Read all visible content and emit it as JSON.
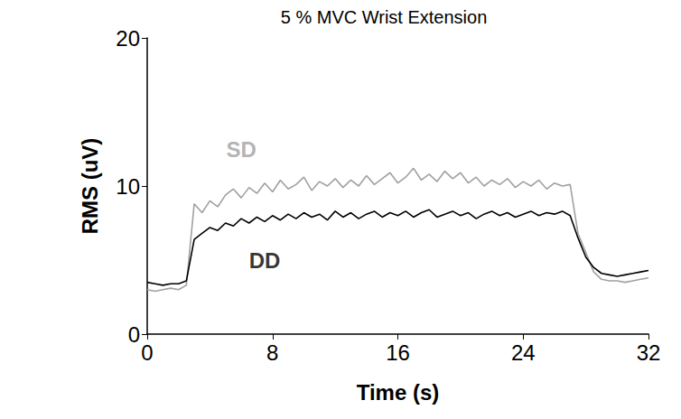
{
  "chart_data": {
    "type": "line",
    "title": "5 % MVC Wrist Extension",
    "x_label": "Time (s)",
    "y_label": "RMS (uV)",
    "xlim": [
      0,
      32
    ],
    "xticks": [
      0,
      8,
      16,
      24,
      32
    ],
    "ylim": [
      0,
      20
    ],
    "yticks": [
      0,
      10,
      20
    ],
    "grid": false,
    "x": [
      0,
      0.5,
      1,
      1.5,
      2,
      2.5,
      3,
      3.5,
      4,
      4.5,
      5,
      5.5,
      6,
      6.5,
      7,
      7.5,
      8,
      8.5,
      9,
      9.5,
      10,
      10.5,
      11,
      11.5,
      12,
      12.5,
      13,
      13.5,
      14,
      14.5,
      15,
      15.5,
      16,
      16.5,
      17,
      17.5,
      18,
      18.5,
      19,
      19.5,
      20,
      20.5,
      21,
      21.5,
      22,
      22.5,
      23,
      23.5,
      24,
      24.5,
      25,
      25.5,
      26,
      26.5,
      27,
      27.5,
      28,
      28.5,
      29,
      29.5,
      30,
      30.5,
      31,
      31.5,
      32
    ],
    "series": [
      {
        "name": "SD",
        "color": "#a0a0a0",
        "values": [
          3.0,
          2.9,
          3.0,
          3.1,
          3.0,
          3.3,
          8.8,
          8.2,
          9.0,
          8.6,
          9.4,
          9.8,
          9.2,
          9.9,
          9.5,
          10.2,
          9.6,
          10.4,
          9.8,
          10.1,
          10.6,
          9.7,
          10.3,
          10.0,
          10.5,
          9.9,
          10.4,
          10.0,
          10.7,
          10.1,
          10.5,
          10.9,
          10.2,
          10.6,
          11.2,
          10.4,
          10.8,
          10.3,
          11.0,
          10.5,
          10.9,
          10.2,
          10.6,
          10.0,
          10.4,
          10.1,
          10.5,
          9.9,
          10.3,
          10.0,
          10.4,
          9.8,
          10.2,
          10.0,
          10.1,
          6.8,
          5.5,
          4.2,
          3.7,
          3.6,
          3.6,
          3.5,
          3.6,
          3.7,
          3.8
        ]
      },
      {
        "name": "DD",
        "color": "#000000",
        "values": [
          3.5,
          3.4,
          3.3,
          3.4,
          3.4,
          3.6,
          6.4,
          6.8,
          7.2,
          7.0,
          7.5,
          7.3,
          7.8,
          7.5,
          7.9,
          7.6,
          8.0,
          7.7,
          8.1,
          7.8,
          8.2,
          7.9,
          8.1,
          7.7,
          8.3,
          7.9,
          8.2,
          7.8,
          8.1,
          8.3,
          7.9,
          8.2,
          8.0,
          8.3,
          7.9,
          8.2,
          8.4,
          7.9,
          8.1,
          8.3,
          8.0,
          8.2,
          7.8,
          8.1,
          8.3,
          8.0,
          8.2,
          7.9,
          8.1,
          8.3,
          8.0,
          8.2,
          8.1,
          8.3,
          8.0,
          6.5,
          5.2,
          4.5,
          4.1,
          4.0,
          3.9,
          4.0,
          4.1,
          4.2,
          4.3
        ]
      }
    ],
    "annotations": [
      {
        "text": "SD",
        "x": 6,
        "y": 12.5,
        "color": "#a0a0a0"
      },
      {
        "text": "DD",
        "x": 7.5,
        "y": 5,
        "color": "#000000"
      }
    ]
  }
}
